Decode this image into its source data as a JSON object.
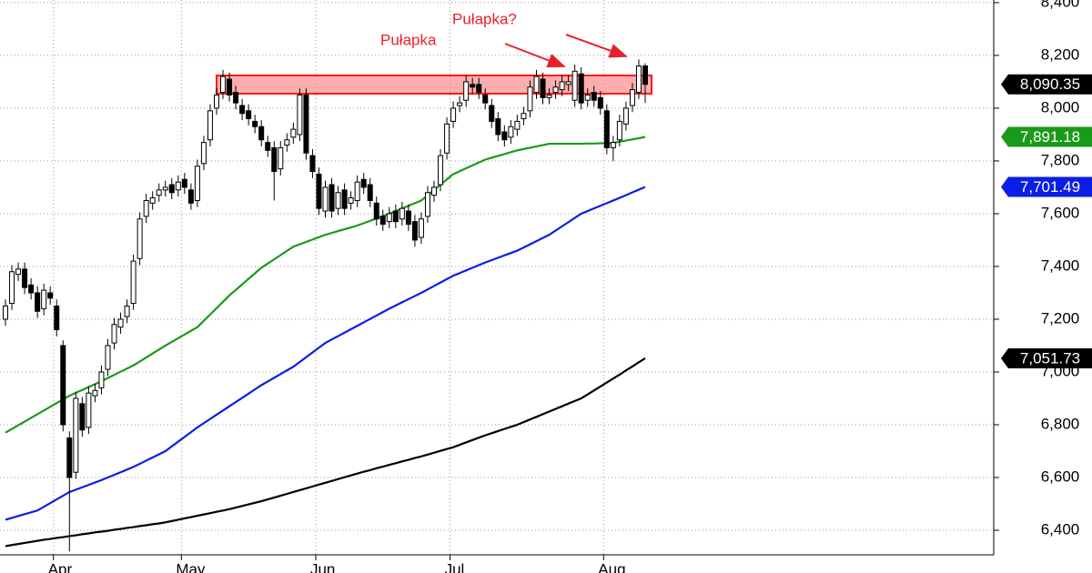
{
  "chart_data": {
    "type": "candlestick",
    "categories": [
      null,
      null,
      null,
      null,
      null,
      null,
      null,
      null,
      "Apr",
      null,
      null,
      null,
      null,
      null,
      null,
      null,
      null,
      null,
      null,
      null,
      null,
      null,
      null,
      null,
      null,
      null,
      null,
      null,
      "May",
      null,
      null,
      null,
      null,
      null,
      null,
      null,
      null,
      null,
      null,
      null,
      null,
      null,
      null,
      null,
      null,
      null,
      null,
      null,
      null,
      "Jun",
      null,
      null,
      null,
      null,
      null,
      null,
      null,
      null,
      null,
      null,
      null,
      null,
      null,
      null,
      null,
      null,
      null,
      null,
      null,
      null,
      "Jul",
      null,
      null,
      null,
      null,
      null,
      null,
      null,
      null,
      null,
      null,
      null,
      null,
      null,
      null,
      null,
      null,
      null,
      null,
      null,
      null,
      null,
      null,
      null,
      "Aug",
      null,
      null,
      null,
      null,
      null,
      null
    ],
    "open": [
      7200,
      7260,
      7370,
      7390,
      7330,
      7300,
      7240,
      7300,
      7250,
      7100,
      6750,
      6620,
      6880,
      6790,
      6910,
      6940,
      7010,
      7110,
      7170,
      7210,
      7260,
      7430,
      7590,
      7640,
      7670,
      7690,
      7710,
      7690,
      7730,
      7690,
      7650,
      7790,
      7880,
      8000,
      8060,
      8110,
      8060,
      8010,
      7990,
      7950,
      7930,
      7870,
      7850,
      7770,
      7860,
      7890,
      7900,
      8050,
      7820,
      7750,
      7610,
      7710,
      7620,
      7690,
      7640,
      7650,
      7730,
      7710,
      7640,
      7590,
      7570,
      7610,
      7580,
      7610,
      7570,
      7510,
      7590,
      7670,
      7710,
      7830,
      7950,
      8010,
      8030,
      8090,
      8090,
      8050,
      8010,
      7960,
      7910,
      7890,
      7920,
      7960,
      7990,
      8060,
      8110,
      8040,
      8060,
      8070,
      8090,
      8030,
      8130,
      8030,
      8060,
      8040,
      7990,
      7850,
      7880,
      7940,
      8010,
      8060,
      8160
    ],
    "high": [
      7275,
      7405,
      7415,
      7415,
      7355,
      7325,
      7335,
      7325,
      7275,
      7120,
      6775,
      6925,
      6905,
      6945,
      6955,
      7025,
      7125,
      7205,
      7225,
      7275,
      7445,
      7605,
      7675,
      7685,
      7715,
      7725,
      7735,
      7745,
      7755,
      7715,
      7805,
      7895,
      8015,
      8075,
      8145,
      8135,
      8085,
      8035,
      8015,
      7975,
      7955,
      7895,
      7875,
      7875,
      7905,
      7945,
      8075,
      8075,
      7845,
      7775,
      7725,
      7735,
      7705,
      7715,
      7685,
      7745,
      7755,
      7735,
      7665,
      7615,
      7625,
      7635,
      7645,
      7635,
      7595,
      7605,
      7705,
      7725,
      7845,
      7965,
      8025,
      8045,
      8125,
      8115,
      8115,
      8075,
      8035,
      7985,
      7935,
      7955,
      7975,
      8005,
      8105,
      8145,
      8135,
      8075,
      8105,
      8125,
      8125,
      8165,
      8155,
      8075,
      8085,
      8065,
      8015,
      7895,
      7975,
      8025,
      8095,
      8185,
      8170
    ],
    "low": [
      7175,
      7235,
      7345,
      7295,
      7275,
      7205,
      7215,
      7255,
      7135,
      6775,
      6320,
      6595,
      6755,
      6765,
      6885,
      6915,
      6985,
      7085,
      7145,
      7185,
      7235,
      7405,
      7565,
      7615,
      7645,
      7665,
      7655,
      7665,
      7675,
      7615,
      7625,
      7765,
      7855,
      7975,
      8035,
      8025,
      7995,
      7955,
      7935,
      7905,
      7855,
      7815,
      7650,
      7745,
      7835,
      7865,
      7875,
      7805,
      7735,
      7595,
      7585,
      7585,
      7595,
      7595,
      7615,
      7625,
      7675,
      7625,
      7555,
      7535,
      7545,
      7545,
      7555,
      7535,
      7475,
      7485,
      7565,
      7645,
      7685,
      7805,
      7925,
      7985,
      8005,
      8055,
      8035,
      7995,
      7925,
      7875,
      7855,
      7865,
      7895,
      7935,
      7965,
      8035,
      8015,
      8015,
      8035,
      8045,
      8065,
      8005,
      7995,
      8005,
      8005,
      7975,
      7825,
      7800,
      7855,
      7915,
      7985,
      8035,
      8020
    ],
    "close": [
      7250,
      7380,
      7390,
      7320,
      7300,
      7230,
      7310,
      7280,
      7160,
      6800,
      6600,
      6900,
      6780,
      6920,
      6930,
      7000,
      7100,
      7180,
      7200,
      7250,
      7420,
      7580,
      7650,
      7660,
      7690,
      7700,
      7680,
      7720,
      7700,
      7640,
      7780,
      7870,
      7990,
      8050,
      8120,
      8050,
      8020,
      7980,
      7960,
      7930,
      7880,
      7840,
      7760,
      7850,
      7880,
      7920,
      8050,
      7830,
      7760,
      7620,
      7700,
      7610,
      7680,
      7620,
      7660,
      7720,
      7700,
      7650,
      7580,
      7560,
      7600,
      7570,
      7620,
      7560,
      7500,
      7580,
      7680,
      7700,
      7820,
      7940,
      8000,
      8020,
      8100,
      8080,
      8060,
      8020,
      7950,
      7900,
      7880,
      7930,
      7950,
      7980,
      8080,
      8120,
      8040,
      8050,
      8080,
      8100,
      8100,
      8140,
      8020,
      8050,
      8030,
      8000,
      7850,
      7870,
      7950,
      8000,
      8070,
      8160,
      8090.35
    ],
    "close_label": "8,090.35",
    "up_color": "#ffffff",
    "down_color": "#000000",
    "series": [
      {
        "color": "#1a9a1a",
        "last_label": "7,891.18",
        "values": [
          6770,
          6784,
          6798,
          6812,
          6826,
          6840,
          6854,
          6868,
          6882,
          6896,
          6910,
          6921,
          6932,
          6943,
          6954,
          6965,
          6977,
          6989,
          7001,
          7013,
          7025,
          7040,
          7055,
          7070,
          7085,
          7100,
          7114,
          7128,
          7142,
          7156,
          7170,
          7194,
          7218,
          7242,
          7266,
          7290,
          7311,
          7332,
          7353,
          7374,
          7395,
          7411,
          7427,
          7443,
          7459,
          7475,
          7484,
          7493,
          7502,
          7511,
          7520,
          7527,
          7534,
          7541,
          7548,
          7555,
          7564,
          7573,
          7582,
          7591,
          7600,
          7610,
          7620,
          7630,
          7640,
          7650,
          7670,
          7690,
          7710,
          7730,
          7750,
          7761,
          7772,
          7783,
          7794,
          7805,
          7812,
          7819,
          7826,
          7833,
          7840,
          7845,
          7850,
          7855,
          7860,
          7865,
          7865,
          7865,
          7865,
          7865,
          7865,
          7866,
          7866,
          7867,
          7867,
          7868,
          7873,
          7877,
          7882,
          7886,
          7891.18
        ]
      },
      {
        "color": "#0a1ee6",
        "last_label": "7,701.49",
        "values": [
          6440,
          6447,
          6454,
          6461,
          6468,
          6475,
          6489,
          6503,
          6517,
          6531,
          6545,
          6554,
          6563,
          6572,
          6581,
          6590,
          6600,
          6610,
          6620,
          6630,
          6640,
          6652,
          6664,
          6676,
          6688,
          6700,
          6718,
          6736,
          6754,
          6772,
          6790,
          6806,
          6822,
          6838,
          6854,
          6870,
          6886,
          6902,
          6918,
          6934,
          6950,
          6964,
          6978,
          6992,
          7006,
          7020,
          7038,
          7056,
          7074,
          7092,
          7110,
          7123,
          7136,
          7149,
          7162,
          7175,
          7188,
          7201,
          7214,
          7227,
          7240,
          7252,
          7264,
          7276,
          7288,
          7300,
          7313,
          7326,
          7339,
          7352,
          7365,
          7375,
          7385,
          7395,
          7405,
          7415,
          7424,
          7433,
          7442,
          7451,
          7460,
          7472,
          7484,
          7496,
          7508,
          7520,
          7536,
          7552,
          7568,
          7584,
          7600,
          7610,
          7620,
          7630,
          7640,
          7650,
          7660,
          7670,
          7681,
          7691,
          7701.49
        ]
      },
      {
        "color": "#000000",
        "last_label": "7,051.73",
        "values": [
          6340,
          6344,
          6348,
          6352,
          6356,
          6360,
          6364,
          6367,
          6371,
          6374,
          6378,
          6381,
          6385,
          6388,
          6392,
          6395,
          6398,
          6402,
          6405,
          6409,
          6412,
          6416,
          6419,
          6423,
          6426,
          6430,
          6435,
          6440,
          6445,
          6450,
          6455,
          6460,
          6465,
          6470,
          6475,
          6480,
          6486,
          6492,
          6498,
          6504,
          6510,
          6517,
          6524,
          6531,
          6538,
          6545,
          6552,
          6559,
          6566,
          6573,
          6580,
          6587,
          6594,
          6601,
          6608,
          6615,
          6622,
          6628,
          6635,
          6641,
          6648,
          6654,
          6661,
          6667,
          6674,
          6680,
          6687,
          6694,
          6701,
          6708,
          6715,
          6724,
          6733,
          6742,
          6751,
          6760,
          6768,
          6776,
          6784,
          6792,
          6800,
          6810,
          6820,
          6830,
          6840,
          6850,
          6860,
          6870,
          6880,
          6890,
          6900,
          6915,
          6930,
          6945,
          6960,
          6975,
          6990,
          7006,
          7021,
          7037,
          7051.73
        ]
      }
    ],
    "ylim": [
      6307,
      8410
    ],
    "yticks": [
      {
        "value": 6400,
        "label": "6,400"
      },
      {
        "value": 6600,
        "label": "6,600"
      },
      {
        "value": 6800,
        "label": "6,800"
      },
      {
        "value": 7000,
        "label": "7,000"
      },
      {
        "value": 7200,
        "label": "7,200"
      },
      {
        "value": 7400,
        "label": "7,400"
      },
      {
        "value": 7600,
        "label": "7,600"
      },
      {
        "value": 7800,
        "label": "7,800"
      },
      {
        "value": 8000,
        "label": "8,000"
      },
      {
        "value": 8200,
        "label": "8,200"
      },
      {
        "value": 8400,
        "label": "8,400"
      }
    ],
    "grid": true,
    "resistance_zone": [
      8055,
      8124
    ],
    "annotations": [
      "Pułapka",
      "Pułapka?"
    ]
  }
}
